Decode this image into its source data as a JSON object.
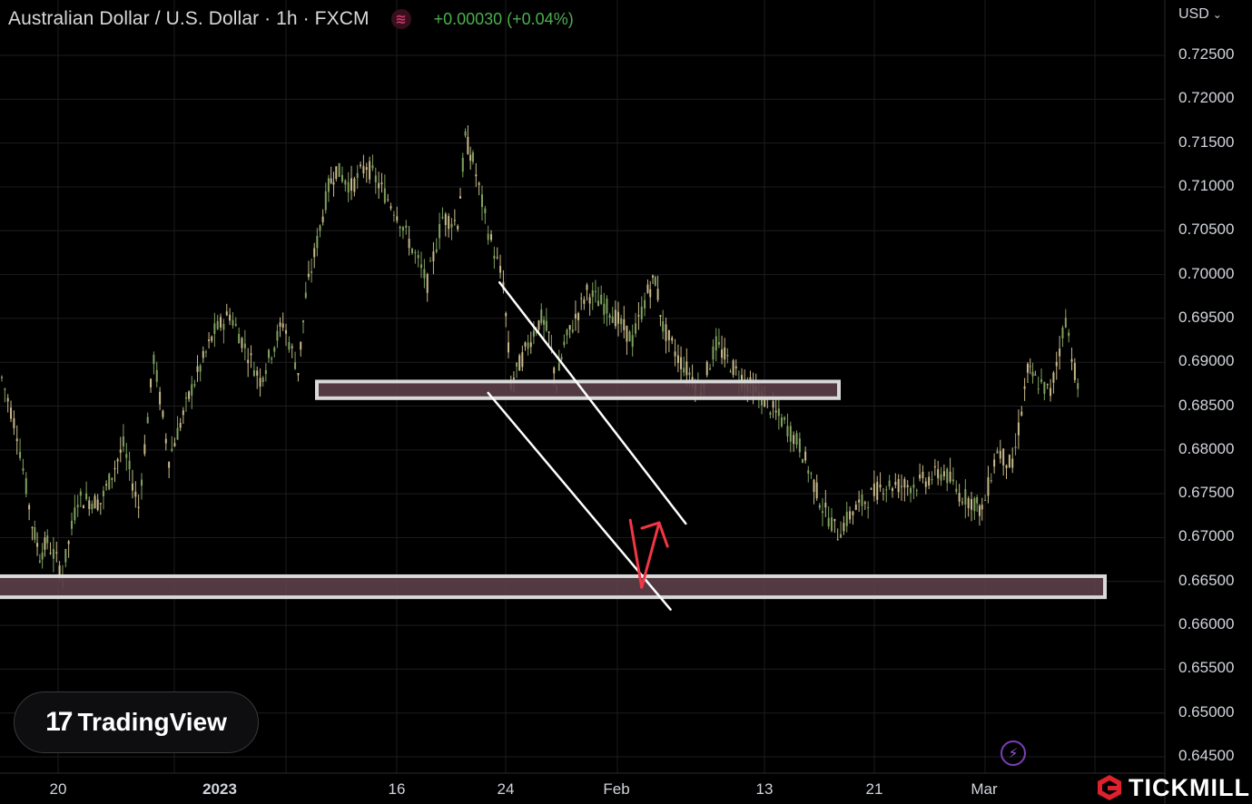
{
  "header": {
    "title": "Australian Dollar / U.S. Dollar · 1h · FXCM",
    "change": "+0.00030 (+0.04%)",
    "badge_icon": "tilde-waves-icon",
    "change_color": "#4caf50"
  },
  "price_scale": {
    "currency": "USD",
    "labels": [
      "0.72500",
      "0.72000",
      "0.71500",
      "0.71000",
      "0.70500",
      "0.70000",
      "0.69500",
      "0.69000",
      "0.68500",
      "0.68000",
      "0.67500",
      "0.67000",
      "0.66500",
      "0.66000",
      "0.65500",
      "0.65000",
      "0.64500"
    ]
  },
  "time_scale": {
    "labels": [
      {
        "text": "20",
        "bold": false
      },
      {
        "text": "2023",
        "bold": true
      },
      {
        "text": "16",
        "bold": false
      },
      {
        "text": "24",
        "bold": false
      },
      {
        "text": "Feb",
        "bold": false
      },
      {
        "text": "13",
        "bold": false
      },
      {
        "text": "21",
        "bold": false
      },
      {
        "text": "Mar",
        "bold": false
      }
    ]
  },
  "branding": {
    "tradingview": "TradingView",
    "tradingview_mark": "17",
    "tickmill": "TICKMILL"
  },
  "chart_data": {
    "type": "line",
    "title": "Australian Dollar / U.S. Dollar · 1h · FXCM",
    "ylim": [
      0.642,
      0.731
    ],
    "grid": true,
    "series": [
      {
        "x": [
          0,
          2,
          4,
          5,
          6,
          8,
          10,
          13,
          16,
          18,
          20,
          22,
          25,
          28,
          30,
          34,
          37,
          39,
          40,
          43,
          44,
          46,
          48,
          52,
          56,
          58,
          60,
          61,
          62,
          64,
          66,
          67,
          70,
          71,
          72,
          73,
          74,
          77,
          80,
          83,
          85,
          86,
          87,
          89,
          92,
          94,
          97,
          100,
          103,
          105,
          108,
          110,
          112,
          116,
          120,
          124,
          126,
          128,
          129,
          131,
          133,
          135,
          136,
          138,
          140,
          142
        ],
        "y": [
          0.6882,
          0.682,
          0.6715,
          0.668,
          0.6695,
          0.666,
          0.6745,
          0.674,
          0.6805,
          0.6735,
          0.6905,
          0.679,
          0.687,
          0.6935,
          0.6955,
          0.688,
          0.6945,
          0.689,
          0.6975,
          0.71,
          0.712,
          0.71,
          0.7125,
          0.707,
          0.699,
          0.7065,
          0.706,
          0.7155,
          0.713,
          0.705,
          0.699,
          0.6875,
          0.6935,
          0.695,
          0.693,
          0.6875,
          0.692,
          0.698,
          0.696,
          0.6925,
          0.698,
          0.6995,
          0.694,
          0.6905,
          0.687,
          0.692,
          0.6885,
          0.686,
          0.683,
          0.6805,
          0.6735,
          0.6705,
          0.673,
          0.676,
          0.676,
          0.6775,
          0.675,
          0.674,
          0.673,
          0.68,
          0.678,
          0.689,
          0.688,
          0.6865,
          0.695,
          0.685
        ]
      }
    ],
    "zones": [
      {
        "from": 0.6859,
        "to": 0.6878
      },
      {
        "from": 0.6632,
        "to": 0.6656
      }
    ],
    "channel": {
      "upper": {
        "x": [
          65.5,
          90
        ],
        "y": [
          0.6991,
          0.6716
        ]
      },
      "lower": {
        "x": [
          64,
          88
        ],
        "y": [
          0.6865,
          0.6618
        ]
      }
    },
    "projection": {
      "x": [
        82.7,
        84.2,
        86.5,
        87.6
      ],
      "y": [
        0.672,
        0.6643,
        0.6717,
        0.669
      ]
    },
    "colors": {
      "zone_fill": "#5c4049",
      "zone_border": "#d9d9d9",
      "channel": "#ffffff",
      "projection": "#f23645",
      "grid": "#1d1d20",
      "candle_up": "#7fa15f",
      "candle_down": "#c9b98a"
    }
  }
}
